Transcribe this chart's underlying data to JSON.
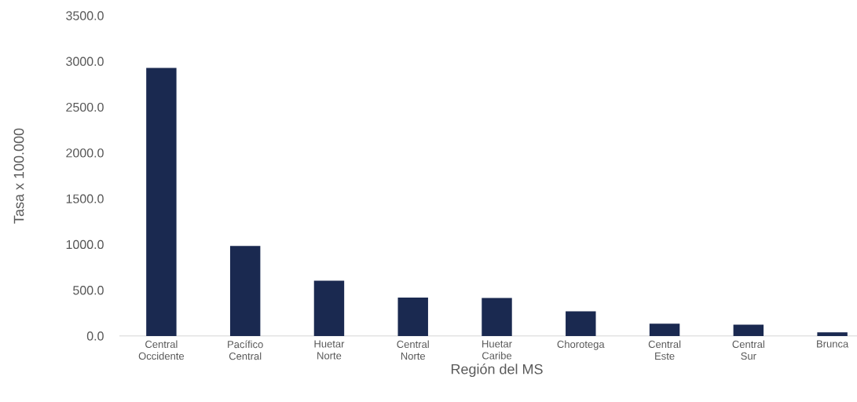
{
  "chart_data": {
    "type": "bar",
    "xlabel": "Región del MS",
    "ylabel": "Tasa x 100.000",
    "categories": [
      "Central Occidente",
      "Pacífico Central",
      "Huetar Norte",
      "Central Norte",
      "Huetar Caribe",
      "Chorotega",
      "Central Este",
      "Central Sur",
      "Brunca"
    ],
    "values": [
      2930,
      985,
      605,
      420,
      415,
      270,
      135,
      125,
      40
    ],
    "color": "#1a2950",
    "ylim": [
      0,
      3500
    ],
    "yticks": [
      {
        "value": 0,
        "label": "0.0"
      },
      {
        "value": 500,
        "label": "500.0"
      },
      {
        "value": 1000,
        "label": "1000.0"
      },
      {
        "value": 1500,
        "label": "1500.0"
      },
      {
        "value": 2000,
        "label": "2000.0"
      },
      {
        "value": 2500,
        "label": "2500.0"
      },
      {
        "value": 3000,
        "label": "3000.0"
      },
      {
        "value": 3500,
        "label": "3500.0"
      }
    ]
  }
}
